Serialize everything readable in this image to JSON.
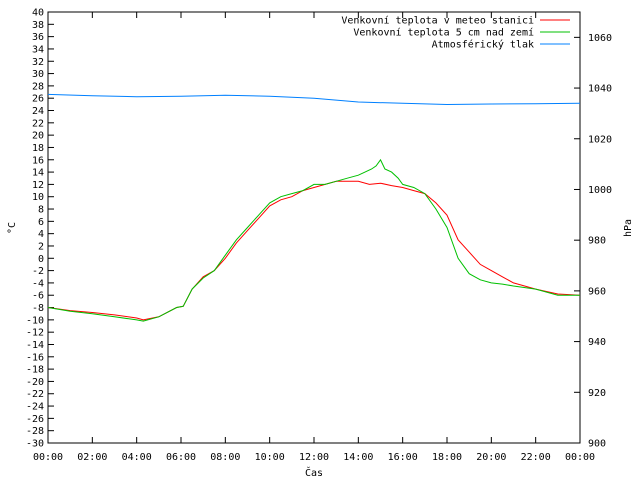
{
  "chart_data": {
    "type": "line",
    "xlabel": "Čas",
    "ylabel_left": "°C",
    "ylabel_right": "hPa",
    "xlim": [
      0,
      24
    ],
    "ylim_left": [
      -30,
      40
    ],
    "ylim_right": [
      900,
      1070
    ],
    "x_ticks": [
      "00:00",
      "02:00",
      "04:00",
      "06:00",
      "08:00",
      "10:00",
      "12:00",
      "14:00",
      "16:00",
      "18:00",
      "20:00",
      "22:00",
      "00:00"
    ],
    "y_ticks_left": [
      40,
      38,
      36,
      34,
      32,
      30,
      28,
      26,
      24,
      22,
      20,
      18,
      16,
      14,
      12,
      10,
      8,
      6,
      4,
      2,
      0,
      -2,
      -4,
      -6,
      -8,
      -10,
      -12,
      -14,
      -16,
      -18,
      -20,
      -22,
      -24,
      -26,
      -28,
      -30
    ],
    "y_ticks_right": [
      1060,
      1040,
      1020,
      1000,
      980,
      960,
      940,
      920,
      900
    ],
    "grid": false,
    "legend_position": "top-right",
    "colors": {
      "series1": "#ff0000",
      "series2": "#00c000",
      "series3": "#0080ff"
    },
    "series": [
      {
        "name": "Venkovní teplota v meteo stanici",
        "axis": "left",
        "x": [
          0,
          1,
          2,
          3,
          4,
          4.3,
          5,
          5.8,
          6.1,
          6.5,
          7,
          7.5,
          8,
          8.5,
          9,
          9.5,
          10,
          10.5,
          11,
          11.5,
          12,
          12.5,
          13,
          13.5,
          14,
          14.5,
          15,
          15.5,
          16,
          16.5,
          17,
          17.5,
          18,
          18.5,
          19,
          19.5,
          20,
          20.5,
          21,
          22,
          23,
          24
        ],
        "y": [
          -8,
          -8.5,
          -8.8,
          -9.2,
          -9.7,
          -10,
          -9.5,
          -8,
          -7.8,
          -5,
          -3,
          -2,
          0,
          2.5,
          4.5,
          6.5,
          8.5,
          9.5,
          10,
          11,
          11.5,
          12,
          12.5,
          12.5,
          12.5,
          12,
          12.2,
          11.8,
          11.5,
          11,
          10.5,
          9,
          7,
          3,
          1,
          -1,
          -2,
          -3,
          -4,
          -5,
          -5.8,
          -6
        ]
      },
      {
        "name": "Venkovní teplota 5 cm nad zemí",
        "axis": "left",
        "x": [
          0,
          1,
          2,
          3,
          4,
          4.3,
          5,
          5.8,
          6.1,
          6.5,
          7,
          7.5,
          8,
          8.5,
          9,
          9.5,
          10,
          10.5,
          11,
          11.5,
          12,
          12.5,
          13,
          13.5,
          14,
          14.3,
          14.6,
          14.8,
          15,
          15.2,
          15.5,
          15.8,
          16,
          16.5,
          17,
          17.5,
          18,
          18.5,
          19,
          19.5,
          20,
          20.5,
          21,
          22,
          23,
          24
        ],
        "y": [
          -8,
          -8.6,
          -9,
          -9.5,
          -10,
          -10.2,
          -9.5,
          -8,
          -7.8,
          -5,
          -3.2,
          -2,
          0.5,
          3,
          5,
          7,
          9,
          10,
          10.5,
          11,
          12,
          12,
          12.5,
          13,
          13.5,
          14,
          14.5,
          15,
          16,
          14.5,
          14,
          13,
          12,
          11.5,
          10.5,
          8,
          5,
          0,
          -2.5,
          -3.5,
          -4,
          -4.2,
          -4.5,
          -5,
          -6,
          -6
        ]
      },
      {
        "name": "Atmosférický tlak",
        "axis": "right",
        "x": [
          0,
          2,
          4,
          6,
          8,
          10,
          12,
          14,
          16,
          18,
          20,
          22,
          24
        ],
        "y": [
          1037.5,
          1037,
          1036.6,
          1036.8,
          1037.2,
          1036.8,
          1036,
          1034.5,
          1034,
          1033.5,
          1033.7,
          1033.8,
          1034
        ]
      }
    ]
  }
}
